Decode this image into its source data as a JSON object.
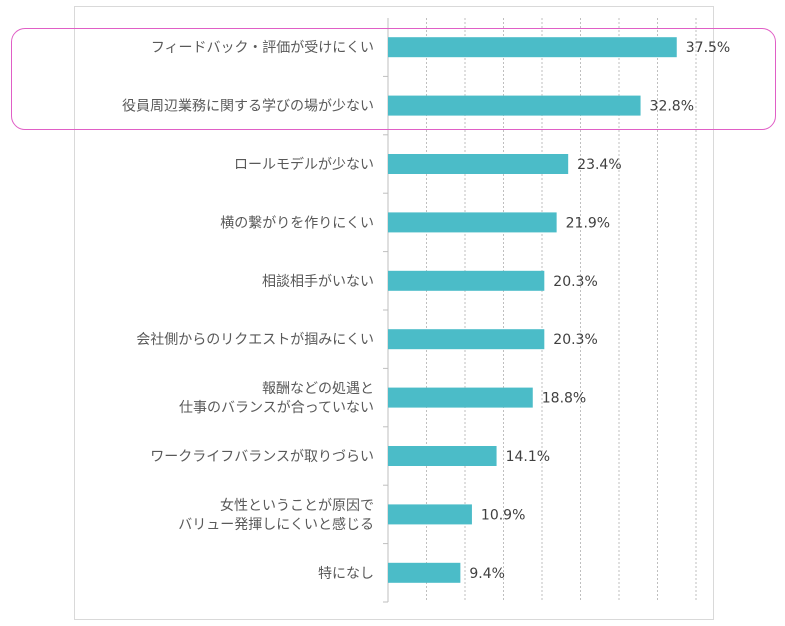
{
  "chart_data": {
    "type": "bar",
    "orientation": "horizontal",
    "categories": [
      [
        "フィードバック・評価が受けにくい"
      ],
      [
        "役員周辺業務に関する学びの場が少ない"
      ],
      [
        "ロールモデルが少ない"
      ],
      [
        "横の繋がりを作りにくい"
      ],
      [
        "相談相手がいない"
      ],
      [
        "会社側からのリクエストが掴みにくい"
      ],
      [
        "報酬などの処遇と",
        "仕事のバランスが合っていない"
      ],
      [
        "ワークライフバランスが取りづらい"
      ],
      [
        "女性ということが原因で",
        "バリュー発揮しにくいと感じる"
      ],
      [
        "特になし"
      ]
    ],
    "values": [
      37.5,
      32.8,
      23.4,
      21.9,
      20.3,
      20.3,
      18.8,
      14.1,
      10.9,
      9.4
    ],
    "value_labels": [
      "37.5%",
      "32.8%",
      "23.4%",
      "21.9%",
      "20.3%",
      "20.3%",
      "18.8%",
      "14.1%",
      "10.9%",
      "9.4%"
    ],
    "xlim": [
      0,
      40
    ],
    "grid": "vertical dotted",
    "bar_color": "#4bbcc8",
    "highlight_color": "#e05fc6",
    "highlighted_categories": [
      0,
      1
    ]
  }
}
